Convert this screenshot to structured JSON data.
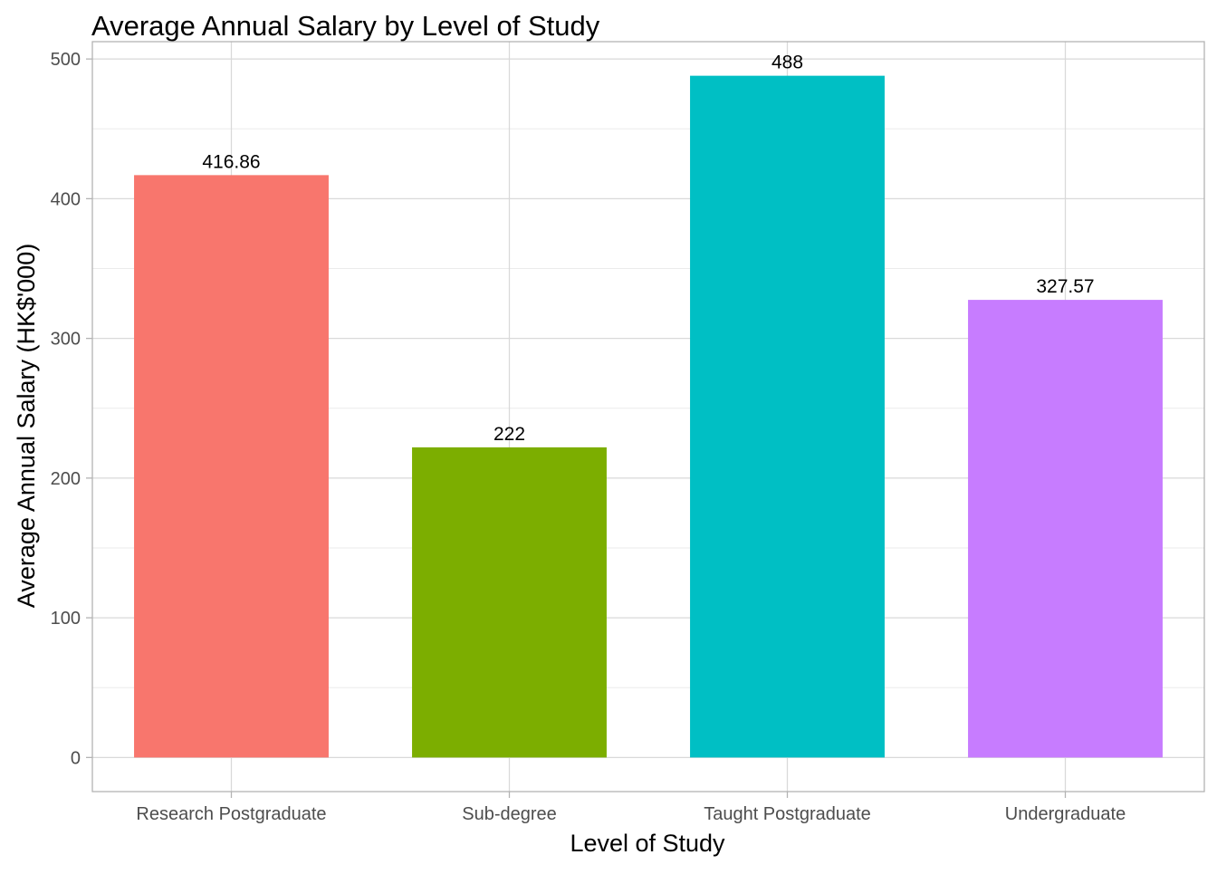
{
  "chart_data": {
    "type": "bar",
    "title": "Average Annual Salary by Level of Study",
    "xlabel": "Level of Study",
    "ylabel": "Average Annual Salary (HK$'000)",
    "categories": [
      "Research Postgraduate",
      "Sub-degree",
      "Taught Postgraduate",
      "Undergraduate"
    ],
    "values": [
      416.86,
      222,
      488,
      327.57
    ],
    "value_labels": [
      "416.86",
      "222",
      "488",
      "327.57"
    ],
    "colors": [
      "#F8766D",
      "#7CAE00",
      "#00BFC4",
      "#C77CFF"
    ],
    "yticks": [
      0,
      100,
      200,
      300,
      400,
      500
    ],
    "ytick_labels": [
      "0",
      "100",
      "200",
      "300",
      "400",
      "500"
    ],
    "ylim": [
      -24.4,
      512.4
    ],
    "grid": true,
    "legend": "none"
  }
}
